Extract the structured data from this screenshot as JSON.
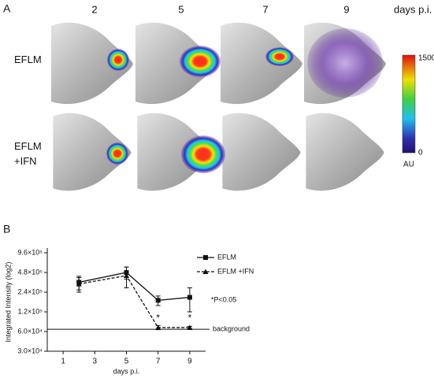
{
  "panel_a": {
    "label": "A",
    "columns": [
      "2",
      "5",
      "7",
      "9"
    ],
    "column_unit": "days p.i.",
    "rows": [
      "EFLM",
      "EFLM +IFN"
    ],
    "colorbar": {
      "max": 1500,
      "min": 0,
      "unit": "AU"
    }
  },
  "chart_data": {
    "type": "line",
    "panel_label": "B",
    "xlabel": "days p.i.",
    "ylabel": "Integrated Intensity (log2)",
    "log_scale": true,
    "xlim": [
      0,
      10
    ],
    "xticks": [
      1,
      3,
      5,
      7,
      9
    ],
    "ylim": [
      30000,
      960000
    ],
    "yticks": [
      {
        "value": 30000,
        "label": "3.0×10⁴"
      },
      {
        "value": 60000,
        "label": "6.0×10⁴"
      },
      {
        "value": 120000,
        "label": "1.2×10⁵"
      },
      {
        "value": 240000,
        "label": "2.4×10⁵"
      },
      {
        "value": 480000,
        "label": "4.8×10⁵"
      },
      {
        "value": 960000,
        "label": "9.6×10⁵"
      }
    ],
    "x": [
      2,
      5,
      7,
      9
    ],
    "series": [
      {
        "name": "EFLM",
        "color": "#111111",
        "marker": "square",
        "dashed": false,
        "values": [
          340000,
          480000,
          180000,
          200000
        ],
        "errors": [
          80000,
          100000,
          30000,
          80000
        ]
      },
      {
        "name": "EFLM +IFN",
        "color": "#111111",
        "marker": "triangle",
        "dashed": true,
        "values": [
          320000,
          430000,
          69000,
          69000
        ],
        "errors": [
          80000,
          150000,
          5000,
          3000
        ]
      }
    ],
    "background": {
      "label": "background",
      "value": 65000
    },
    "annotations": [
      {
        "text": "*",
        "x": 7
      },
      {
        "text": "*",
        "x": 9
      },
      {
        "text": "*P<0.05"
      }
    ]
  }
}
